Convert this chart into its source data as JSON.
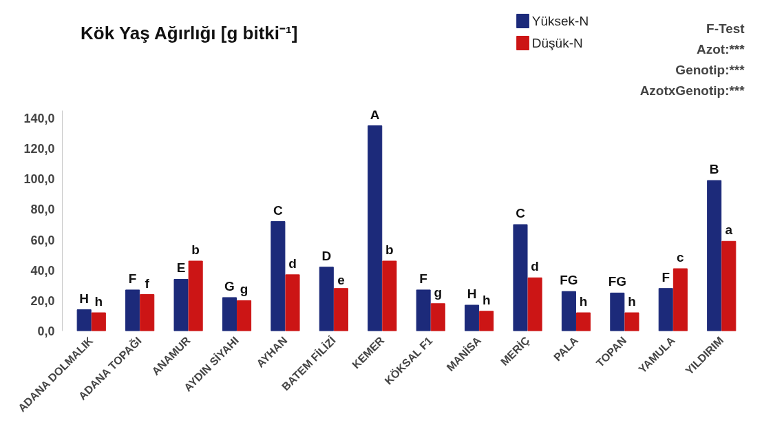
{
  "chart_data": {
    "type": "bar",
    "title": "Kök Yaş Ağırlığı [g bitki⁻¹]",
    "categories": [
      "ADANA DOLMALIK",
      "ADANA TOPAĞI",
      "ANAMUR",
      "AYDIN SİYAHI",
      "AYHAN",
      "BATEM FİLİZİ",
      "KEMER",
      "KÖKSAL F1",
      "MANİSA",
      "MERİÇ",
      "PALA",
      "TOPAN",
      "YAMULA",
      "YILDIRIM"
    ],
    "series": [
      {
        "name": "Yüksek-N",
        "color": "#1c2a7a",
        "values": [
          14,
          27,
          34,
          22,
          72,
          42,
          135,
          27,
          17,
          70,
          26,
          25,
          28,
          99
        ],
        "value_labels": [
          "H",
          "F",
          "E",
          "G",
          "C",
          "D",
          "A",
          "F",
          "H",
          "C",
          "FG",
          "FG",
          "F",
          "B"
        ]
      },
      {
        "name": "Düşük-N",
        "color": "#cc1515",
        "values": [
          12,
          24,
          46,
          20,
          37,
          28,
          46,
          18,
          13,
          35,
          12,
          12,
          41,
          59
        ],
        "value_labels": [
          "h",
          "f",
          "b",
          "g",
          "d",
          "e",
          "b",
          "g",
          "h",
          "d",
          "h",
          "h",
          "c",
          "a"
        ]
      }
    ],
    "ylim": [
      0,
      145
    ],
    "yticks": [
      {
        "value": 0,
        "label": "0,0"
      },
      {
        "value": 20,
        "label": "20,0"
      },
      {
        "value": 40,
        "label": "40,0"
      },
      {
        "value": 60,
        "label": "60,0"
      },
      {
        "value": 80,
        "label": "80,0"
      },
      {
        "value": 100,
        "label": "100,0"
      },
      {
        "value": 120,
        "label": "120,0"
      },
      {
        "value": 140,
        "label": "140,0"
      }
    ],
    "grid": false,
    "legend": "top right",
    "annotations": [
      "F-Test",
      "Azot:***",
      "Genotip:***",
      "AzotxGenotip:***"
    ]
  }
}
